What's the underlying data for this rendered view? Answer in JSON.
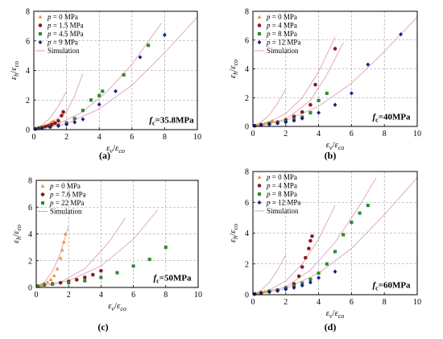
{
  "chart_data": [
    {
      "type": "scatter",
      "panel_label": "(a)",
      "strength_label": {
        "sym": "f",
        "sub": "c",
        "rest": "=35.8MPa"
      },
      "xlabel": {
        "sym": "ε",
        "sub": "v",
        "den": "ε",
        "densub": "co"
      },
      "ylabel": {
        "sym": "ε",
        "sub": "h",
        "den": "ε",
        "densub": "co"
      },
      "xlim": [
        0,
        10
      ],
      "ylim": [
        0,
        8
      ],
      "xticks": [
        "0",
        "2",
        "4",
        "6",
        "8",
        "10"
      ],
      "yticks": [
        "0",
        "2",
        "4",
        "6",
        "8"
      ],
      "grid": true,
      "legend_placement": "top-left",
      "series": [
        {
          "name": "p = 0 MPa",
          "legend_p": "p",
          "legend_val": " = 0 MPa",
          "marker": "triangle",
          "color": "#e8943a",
          "x": [
            0.1,
            0.2,
            0.3,
            0.4,
            0.5,
            0.6,
            0.7,
            0.8,
            0.9,
            1.0,
            1.1,
            1.2
          ],
          "y": [
            0.05,
            0.08,
            0.11,
            0.14,
            0.17,
            0.21,
            0.25,
            0.3,
            0.35,
            0.42,
            0.5,
            0.58
          ]
        },
        {
          "name": "p = 1.5 MPa",
          "legend_p": "p",
          "legend_val": " = 1.5 MPa",
          "marker": "circle",
          "color": "#8b1a1a",
          "x": [
            0.1,
            0.3,
            0.5,
            0.7,
            0.9,
            1.1,
            1.3,
            1.5,
            1.7,
            1.8
          ],
          "y": [
            0.05,
            0.1,
            0.15,
            0.2,
            0.26,
            0.34,
            0.44,
            0.6,
            0.95,
            1.2
          ]
        },
        {
          "name": "p = 4.5 MPa",
          "legend_p": "p",
          "legend_val": " = 4.5 MPa",
          "marker": "square",
          "color": "#2e8b2e",
          "x": [
            0.1,
            0.5,
            1.0,
            1.5,
            2.0,
            2.5,
            3.0,
            3.5,
            4.0,
            4.2,
            5.5,
            7.0
          ],
          "y": [
            0.05,
            0.12,
            0.2,
            0.3,
            0.45,
            0.75,
            1.3,
            2.0,
            2.3,
            2.6,
            3.7,
            5.7
          ]
        },
        {
          "name": "p = 9 MPa",
          "legend_p": "p",
          "legend_val": " = 9 MPa",
          "marker": "diamond",
          "color": "#1a1a8b",
          "x": [
            0.1,
            0.5,
            1.0,
            1.5,
            2.0,
            2.5,
            3.0,
            4.0,
            5.0,
            6.5,
            8.0
          ],
          "y": [
            0.05,
            0.1,
            0.18,
            0.25,
            0.35,
            0.5,
            0.7,
            1.7,
            2.6,
            4.9,
            6.4
          ]
        }
      ],
      "simulation": {
        "name": "Simulation",
        "color": "#e0a0b8",
        "curves": [
          {
            "x": [
              0,
              0.5,
              1.0,
              1.5,
              2.0
            ],
            "y": [
              0,
              0.3,
              0.8,
              1.6,
              2.6
            ]
          },
          {
            "x": [
              0,
              1.0,
              2.0,
              2.5,
              3.0
            ],
            "y": [
              0,
              0.4,
              1.2,
              2.3,
              3.8
            ]
          },
          {
            "x": [
              0,
              1.5,
              3.0,
              4.5,
              6.0,
              7.8
            ],
            "y": [
              0,
              0.4,
              1.2,
              2.6,
              4.4,
              7.2
            ]
          },
          {
            "x": [
              0,
              2.0,
              4.0,
              6.0,
              8.0,
              10.0
            ],
            "y": [
              0,
              0.4,
              1.4,
              3.0,
              5.2,
              7.6
            ]
          }
        ]
      }
    },
    {
      "type": "scatter",
      "panel_label": "(b)",
      "strength_label": {
        "sym": "f",
        "sub": "c",
        "rest": "=40MPa"
      },
      "xlabel": {
        "sym": "ε",
        "sub": "v",
        "den": "ε",
        "densub": "co"
      },
      "ylabel": {
        "sym": "ε",
        "sub": "h",
        "den": "ε",
        "densub": "co"
      },
      "xlim": [
        0,
        10
      ],
      "ylim": [
        0,
        8
      ],
      "xticks": [
        "0",
        "2",
        "4",
        "6",
        "8",
        "10"
      ],
      "yticks": [
        "0",
        "2",
        "4",
        "6",
        "8"
      ],
      "grid": true,
      "legend_placement": "top-left",
      "series": [
        {
          "name": "p = 0 MPa",
          "legend_p": "p",
          "legend_val": " = 0 MPa",
          "marker": "triangle",
          "color": "#e8943a",
          "x": [
            0.1,
            0.3,
            0.5,
            0.7,
            0.9,
            1.1,
            1.2
          ],
          "y": [
            0.05,
            0.1,
            0.15,
            0.2,
            0.28,
            0.35,
            0.4
          ]
        },
        {
          "name": "p = 4 MPa",
          "legend_p": "p",
          "legend_val": " = 4 MPa",
          "marker": "circle",
          "color": "#8b1a1a",
          "x": [
            0.1,
            0.5,
            1.0,
            1.5,
            2.0,
            2.5,
            3.0,
            3.5,
            3.8,
            5.0
          ],
          "y": [
            0.05,
            0.12,
            0.2,
            0.3,
            0.45,
            0.7,
            1.0,
            1.5,
            2.9,
            5.4
          ]
        },
        {
          "name": "p = 8 MPa",
          "legend_p": "p",
          "legend_val": " = 8 MPa",
          "marker": "square",
          "color": "#2e8b2e",
          "x": [
            0.1,
            0.5,
            1.0,
            1.5,
            2.0,
            2.5,
            3.0,
            3.5,
            4.0,
            4.5
          ],
          "y": [
            0.05,
            0.1,
            0.18,
            0.25,
            0.35,
            0.48,
            0.65,
            0.95,
            1.8,
            2.3
          ]
        },
        {
          "name": "p = 12 MPa",
          "legend_p": "p",
          "legend_val": " = 12 MPa",
          "marker": "diamond",
          "color": "#1a1a8b",
          "x": [
            0.1,
            0.5,
            1.0,
            1.5,
            2.0,
            2.5,
            3.0,
            4.0,
            5.0,
            6.0,
            7.0,
            9.0
          ],
          "y": [
            0.05,
            0.1,
            0.15,
            0.22,
            0.3,
            0.4,
            0.55,
            0.95,
            1.5,
            2.3,
            4.3,
            6.4
          ]
        }
      ],
      "simulation": {
        "name": "Simulation",
        "color": "#e0a0b8",
        "curves": [
          {
            "x": [
              0,
              0.5,
              1.0,
              1.5,
              2.0
            ],
            "y": [
              0,
              0.3,
              0.8,
              1.6,
              2.6
            ]
          },
          {
            "x": [
              0,
              1.0,
              2.0,
              3.0,
              4.0,
              5.0
            ],
            "y": [
              0,
              0.3,
              0.9,
              2.0,
              3.8,
              6.2
            ]
          },
          {
            "x": [
              0,
              2.0,
              3.5,
              4.5,
              5.5
            ],
            "y": [
              0,
              0.5,
              1.8,
              3.6,
              5.8
            ]
          },
          {
            "x": [
              0,
              2.0,
              4.0,
              6.0,
              8.0,
              10.0
            ],
            "y": [
              0,
              0.4,
              1.4,
              3.0,
              5.2,
              7.6
            ]
          }
        ]
      }
    },
    {
      "type": "scatter",
      "panel_label": "(c)",
      "strength_label": {
        "sym": "f",
        "sub": "c",
        "rest": "=50MPa"
      },
      "xlabel": {
        "sym": "ε",
        "sub": "v",
        "den": "ε",
        "densub": "co"
      },
      "ylabel": {
        "sym": "ε",
        "sub": "h",
        "den": "ε",
        "densub": "co"
      },
      "xlim": [
        0,
        10
      ],
      "ylim": [
        0,
        8
      ],
      "xticks": [
        "0",
        "2",
        "4",
        "6",
        "8",
        "10"
      ],
      "yticks": [
        "0",
        "2",
        "4",
        "6",
        "8"
      ],
      "grid": true,
      "legend_placement": "top-left",
      "series": [
        {
          "name": "p = 0 MPa",
          "legend_p": "p",
          "legend_val": " = 0 MPa",
          "marker": "triangle",
          "color": "#e8943a",
          "x": [
            0.1,
            0.3,
            0.5,
            0.7,
            0.9,
            1.1,
            1.3,
            1.5,
            1.6,
            1.7,
            1.8
          ],
          "y": [
            0.1,
            0.2,
            0.3,
            0.4,
            0.6,
            0.9,
            1.4,
            2.2,
            2.8,
            3.4,
            4.0
          ]
        },
        {
          "name": "p = 7.6 MPa",
          "legend_p": "p",
          "legend_val": " = 7.6 MPa",
          "marker": "circle",
          "color": "#8b1a1a",
          "x": [
            0.1,
            0.5,
            1.0,
            1.5,
            2.0,
            2.5,
            3.0,
            3.5,
            4.0
          ],
          "y": [
            0.1,
            0.2,
            0.28,
            0.35,
            0.45,
            0.58,
            0.75,
            0.95,
            1.25
          ]
        },
        {
          "name": "p = 22 MPa",
          "legend_p": "p",
          "legend_val": " = 22 MPa",
          "marker": "square",
          "color": "#2e8b2e",
          "x": [
            0.1,
            0.5,
            1.0,
            2.0,
            3.0,
            4.0,
            5.0,
            6.0,
            7.0,
            8.0
          ],
          "y": [
            0.1,
            0.2,
            0.25,
            0.35,
            0.5,
            0.75,
            1.1,
            1.6,
            2.1,
            3.0
          ]
        }
      ],
      "simulation": {
        "name": "Simulation",
        "color": "#e0a0b8",
        "curves": [
          {
            "x": [
              0,
              0.5,
              1.0,
              1.5,
              2.0
            ],
            "y": [
              0,
              0.4,
              1.2,
              2.6,
              4.6
            ]
          },
          {
            "x": [
              0,
              1.5,
              3.0,
              4.5,
              5.5
            ],
            "y": [
              0,
              0.4,
              1.4,
              3.4,
              5.2
            ]
          },
          {
            "x": [
              0,
              2.0,
              4.0,
              6.0,
              7.5
            ],
            "y": [
              0,
              0.5,
              1.6,
              3.6,
              5.8
            ]
          }
        ]
      }
    },
    {
      "type": "scatter",
      "panel_label": "(d)",
      "strength_label": {
        "sym": "f",
        "sub": "c",
        "rest": "=60MPa"
      },
      "xlabel": {
        "sym": "ε",
        "sub": "v",
        "den": "ε",
        "densub": "co"
      },
      "ylabel": {
        "sym": "ε",
        "sub": "h",
        "den": "ε",
        "densub": "co"
      },
      "xlim": [
        0,
        10
      ],
      "ylim": [
        0,
        8
      ],
      "xticks": [
        "0",
        "2",
        "4",
        "6",
        "8",
        "10"
      ],
      "yticks": [
        "0",
        "2",
        "4",
        "6",
        "8"
      ],
      "grid": true,
      "legend_placement": "top-left",
      "series": [
        {
          "name": "p = 0 MPa",
          "legend_p": "p",
          "legend_val": " = 0 MPa",
          "marker": "triangle",
          "color": "#e8943a",
          "x": [
            0.1,
            0.3,
            0.5,
            0.7,
            0.9,
            1.0
          ],
          "y": [
            0.05,
            0.1,
            0.15,
            0.2,
            0.25,
            0.3
          ]
        },
        {
          "name": "p = 4 MPa",
          "legend_p": "p",
          "legend_val": " = 4 MPa",
          "marker": "circle",
          "color": "#8b1a1a",
          "x": [
            0.1,
            0.5,
            1.0,
            1.5,
            2.0,
            2.5,
            2.8,
            3.0,
            3.2,
            3.4,
            3.5,
            3.6
          ],
          "y": [
            0.05,
            0.12,
            0.2,
            0.3,
            0.45,
            0.7,
            1.2,
            1.8,
            2.4,
            3.0,
            3.5,
            3.8
          ]
        },
        {
          "name": "p = 8 MPa",
          "legend_p": "p",
          "legend_val": " = 8 MPa",
          "marker": "square",
          "color": "#2e8b2e",
          "x": [
            0.1,
            0.5,
            1.0,
            1.5,
            2.0,
            2.5,
            3.0,
            3.5,
            4.0,
            4.5,
            5.0,
            5.5,
            6.0,
            6.5,
            7.0
          ],
          "y": [
            0.05,
            0.12,
            0.2,
            0.3,
            0.42,
            0.55,
            0.75,
            1.0,
            1.4,
            2.0,
            2.8,
            3.9,
            4.7,
            5.3,
            5.8
          ]
        },
        {
          "name": "p = 12 MPa",
          "legend_p": "p",
          "legend_val": " = 12 MPa",
          "marker": "diamond",
          "color": "#1a1a8b",
          "x": [
            0.1,
            0.5,
            1.0,
            1.5,
            2.0,
            2.5,
            3.0,
            3.5,
            4.0,
            5.0
          ],
          "y": [
            0.05,
            0.1,
            0.18,
            0.25,
            0.35,
            0.45,
            0.6,
            0.8,
            1.1,
            1.5
          ]
        }
      ],
      "simulation": {
        "name": "Simulation",
        "color": "#e0a0b8",
        "curves": [
          {
            "x": [
              0,
              0.5,
              1.0,
              1.5,
              2.0
            ],
            "y": [
              0,
              0.3,
              0.8,
              1.6,
              2.6
            ]
          },
          {
            "x": [
              0,
              1.0,
              2.0,
              3.0,
              4.0,
              5.0
            ],
            "y": [
              0,
              0.3,
              0.9,
              2.0,
              3.6,
              5.8
            ]
          },
          {
            "x": [
              0,
              2.0,
              3.5,
              5.0,
              6.5,
              7.5
            ],
            "y": [
              0,
              0.5,
              1.6,
              3.4,
              5.8,
              7.6
            ]
          },
          {
            "x": [
              0,
              2.0,
              4.0,
              6.0,
              8.0,
              10.0
            ],
            "y": [
              0,
              0.4,
              1.4,
              3.0,
              5.2,
              7.6
            ]
          }
        ]
      }
    }
  ]
}
